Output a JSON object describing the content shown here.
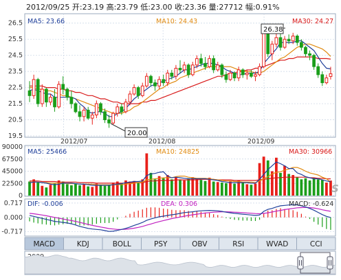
{
  "header": {
    "text": "2012/09/25 开:23.19 高:23.79 低:23.00 收:23.36 量:27712 幅:0.91%"
  },
  "price_panel": {
    "ma_labels": [
      "MA5: 23.66",
      "MA10: 24.43",
      "MA30: 24.27"
    ],
    "y_ticks": [
      "26.5",
      "25.5",
      "24.5",
      "23.5",
      "22.5",
      "21.5",
      "20.5",
      "19.5"
    ],
    "date_labels": [
      "2012/07",
      "2012/08",
      "2012/09"
    ],
    "callout_high": "26.38",
    "callout_low": "20.00"
  },
  "volume_panel": {
    "ma_labels": [
      "MA5: 25466",
      "MA10: 24825",
      "MA30: 30966"
    ],
    "y_ticks": [
      "90000",
      "67500",
      "45000",
      "22500",
      "0"
    ]
  },
  "macd_panel": {
    "labels": [
      "DIF: -0.006",
      "DEA: 0.306",
      "MACD: -0.624"
    ],
    "y_ticks": [
      "0.717",
      "0.000",
      "-0.717"
    ]
  },
  "tabs": [
    "MACD",
    "KDJ",
    "BOLL",
    "PSY",
    "OBV",
    "RSI",
    "WVAD",
    "CCI"
  ],
  "active_tab": "MACD",
  "overview": {
    "year_label": "2009"
  },
  "watermark": "S",
  "colors": {
    "up": "#e8201a",
    "down": "#1a9e1a",
    "ma5": "#1f3f9a",
    "ma10": "#e08a10",
    "ma30": "#d81818",
    "dif": "#1f3f9a",
    "dea": "#c020c0",
    "grid": "#c8d4e4",
    "axis": "#9aa8bc",
    "tab_bg": "#dfe6ee",
    "tab_active": "#b8c8dc"
  },
  "chart_data": {
    "type": "candlestick",
    "x_start": "2012-06-25",
    "candles": [
      {
        "o": 22.3,
        "h": 22.9,
        "l": 21.6,
        "c": 22.0,
        "v": 26000
      },
      {
        "o": 22.0,
        "h": 23.3,
        "l": 21.8,
        "c": 23.0,
        "v": 30000
      },
      {
        "o": 23.0,
        "h": 23.1,
        "l": 21.3,
        "c": 21.5,
        "v": 24000
      },
      {
        "o": 21.5,
        "h": 22.7,
        "l": 21.3,
        "c": 22.4,
        "v": 18000
      },
      {
        "o": 22.4,
        "h": 22.5,
        "l": 21.3,
        "c": 21.6,
        "v": 15000
      },
      {
        "o": 21.6,
        "h": 22.1,
        "l": 21.4,
        "c": 21.9,
        "v": 20000
      },
      {
        "o": 21.9,
        "h": 22.4,
        "l": 21.0,
        "c": 21.3,
        "v": 22000
      },
      {
        "o": 21.3,
        "h": 22.9,
        "l": 21.2,
        "c": 22.7,
        "v": 28000
      },
      {
        "o": 22.7,
        "h": 23.2,
        "l": 22.1,
        "c": 22.4,
        "v": 26000
      },
      {
        "o": 22.4,
        "h": 22.5,
        "l": 21.7,
        "c": 21.9,
        "v": 21000
      },
      {
        "o": 21.9,
        "h": 22.3,
        "l": 21.2,
        "c": 21.5,
        "v": 19000
      },
      {
        "o": 21.5,
        "h": 21.6,
        "l": 20.9,
        "c": 21.0,
        "v": 23000
      },
      {
        "o": 21.0,
        "h": 21.4,
        "l": 20.4,
        "c": 20.7,
        "v": 19000
      },
      {
        "o": 20.7,
        "h": 21.3,
        "l": 20.4,
        "c": 21.1,
        "v": 21000
      },
      {
        "o": 21.1,
        "h": 21.3,
        "l": 20.5,
        "c": 20.6,
        "v": 17000
      },
      {
        "o": 20.6,
        "h": 21.0,
        "l": 20.2,
        "c": 20.8,
        "v": 16000
      },
      {
        "o": 20.8,
        "h": 21.7,
        "l": 20.6,
        "c": 21.5,
        "v": 22000
      },
      {
        "o": 21.5,
        "h": 21.6,
        "l": 20.8,
        "c": 21.0,
        "v": 20000
      },
      {
        "o": 21.0,
        "h": 21.2,
        "l": 20.3,
        "c": 20.5,
        "v": 18000
      },
      {
        "o": 20.5,
        "h": 20.8,
        "l": 20.0,
        "c": 20.3,
        "v": 19000
      },
      {
        "o": 20.3,
        "h": 21.0,
        "l": 20.2,
        "c": 20.9,
        "v": 24000
      },
      {
        "o": 20.9,
        "h": 21.5,
        "l": 20.7,
        "c": 21.3,
        "v": 26000
      },
      {
        "o": 21.3,
        "h": 21.5,
        "l": 20.8,
        "c": 21.0,
        "v": 22000
      },
      {
        "o": 21.0,
        "h": 21.8,
        "l": 20.9,
        "c": 21.6,
        "v": 28000
      },
      {
        "o": 21.6,
        "h": 22.3,
        "l": 21.4,
        "c": 22.1,
        "v": 26000
      },
      {
        "o": 22.1,
        "h": 22.7,
        "l": 22.0,
        "c": 22.5,
        "v": 27000
      },
      {
        "o": 22.5,
        "h": 22.6,
        "l": 21.8,
        "c": 22.0,
        "v": 25000
      },
      {
        "o": 22.0,
        "h": 22.8,
        "l": 21.9,
        "c": 22.6,
        "v": 30000
      },
      {
        "o": 22.6,
        "h": 23.4,
        "l": 22.5,
        "c": 23.2,
        "v": 78000
      },
      {
        "o": 23.2,
        "h": 23.3,
        "l": 22.6,
        "c": 22.8,
        "v": 42000
      },
      {
        "o": 22.8,
        "h": 23.0,
        "l": 22.3,
        "c": 22.6,
        "v": 30000
      },
      {
        "o": 22.6,
        "h": 23.2,
        "l": 22.4,
        "c": 23.0,
        "v": 36000
      },
      {
        "o": 23.0,
        "h": 23.3,
        "l": 22.6,
        "c": 22.8,
        "v": 32000
      },
      {
        "o": 22.8,
        "h": 23.6,
        "l": 22.6,
        "c": 23.4,
        "v": 38000
      },
      {
        "o": 23.4,
        "h": 23.6,
        "l": 23.0,
        "c": 23.2,
        "v": 30000
      },
      {
        "o": 23.2,
        "h": 23.9,
        "l": 23.0,
        "c": 23.7,
        "v": 34000
      },
      {
        "o": 23.7,
        "h": 24.2,
        "l": 23.4,
        "c": 23.6,
        "v": 30000
      },
      {
        "o": 23.6,
        "h": 24.1,
        "l": 23.4,
        "c": 23.9,
        "v": 28000
      },
      {
        "o": 23.9,
        "h": 24.0,
        "l": 23.1,
        "c": 23.3,
        "v": 32000
      },
      {
        "o": 23.3,
        "h": 24.1,
        "l": 23.2,
        "c": 23.9,
        "v": 34000
      },
      {
        "o": 23.9,
        "h": 24.5,
        "l": 23.7,
        "c": 24.3,
        "v": 31000
      },
      {
        "o": 24.3,
        "h": 24.6,
        "l": 23.8,
        "c": 24.0,
        "v": 29000
      },
      {
        "o": 24.0,
        "h": 24.4,
        "l": 23.6,
        "c": 23.8,
        "v": 27000
      },
      {
        "o": 23.8,
        "h": 24.5,
        "l": 23.7,
        "c": 24.3,
        "v": 33000
      },
      {
        "o": 24.3,
        "h": 24.5,
        "l": 23.4,
        "c": 23.6,
        "v": 26000
      },
      {
        "o": 23.6,
        "h": 24.1,
        "l": 23.5,
        "c": 23.9,
        "v": 25000
      },
      {
        "o": 23.9,
        "h": 24.0,
        "l": 23.1,
        "c": 23.3,
        "v": 24000
      },
      {
        "o": 23.3,
        "h": 23.5,
        "l": 22.8,
        "c": 23.0,
        "v": 23000
      },
      {
        "o": 23.0,
        "h": 23.6,
        "l": 22.9,
        "c": 23.4,
        "v": 26000
      },
      {
        "o": 23.4,
        "h": 23.5,
        "l": 22.9,
        "c": 23.1,
        "v": 22000
      },
      {
        "o": 23.1,
        "h": 23.8,
        "l": 22.9,
        "c": 23.6,
        "v": 28000
      },
      {
        "o": 23.6,
        "h": 23.7,
        "l": 23.1,
        "c": 23.3,
        "v": 24000
      },
      {
        "o": 23.3,
        "h": 23.6,
        "l": 23.0,
        "c": 23.4,
        "v": 21000
      },
      {
        "o": 23.4,
        "h": 23.6,
        "l": 23.1,
        "c": 23.2,
        "v": 20000
      },
      {
        "o": 23.2,
        "h": 23.5,
        "l": 22.9,
        "c": 23.3,
        "v": 22000
      },
      {
        "o": 23.3,
        "h": 24.0,
        "l": 23.2,
        "c": 23.8,
        "v": 60000
      },
      {
        "o": 23.8,
        "h": 26.3,
        "l": 23.7,
        "c": 26.0,
        "v": 72000
      },
      {
        "o": 26.0,
        "h": 26.2,
        "l": 24.4,
        "c": 24.6,
        "v": 65000
      },
      {
        "o": 24.6,
        "h": 25.4,
        "l": 24.2,
        "c": 25.2,
        "v": 45000
      },
      {
        "o": 25.2,
        "h": 26.38,
        "l": 25.0,
        "c": 25.6,
        "v": 70000
      },
      {
        "o": 25.6,
        "h": 25.9,
        "l": 24.8,
        "c": 25.0,
        "v": 42000
      },
      {
        "o": 25.0,
        "h": 25.7,
        "l": 24.9,
        "c": 25.5,
        "v": 55000
      },
      {
        "o": 25.5,
        "h": 25.8,
        "l": 25.2,
        "c": 25.4,
        "v": 40000
      },
      {
        "o": 25.4,
        "h": 25.9,
        "l": 25.2,
        "c": 25.7,
        "v": 38000
      },
      {
        "o": 25.7,
        "h": 25.8,
        "l": 25.1,
        "c": 25.3,
        "v": 34000
      },
      {
        "o": 25.3,
        "h": 25.5,
        "l": 24.8,
        "c": 25.0,
        "v": 30000
      },
      {
        "o": 25.0,
        "h": 25.1,
        "l": 24.4,
        "c": 24.6,
        "v": 32000
      },
      {
        "o": 24.6,
        "h": 24.8,
        "l": 24.2,
        "c": 24.5,
        "v": 28000
      },
      {
        "o": 24.5,
        "h": 24.6,
        "l": 23.6,
        "c": 23.8,
        "v": 33000
      },
      {
        "o": 23.8,
        "h": 24.0,
        "l": 23.1,
        "c": 23.3,
        "v": 30000
      },
      {
        "o": 23.3,
        "h": 23.5,
        "l": 22.6,
        "c": 22.8,
        "v": 29000
      },
      {
        "o": 22.8,
        "h": 23.3,
        "l": 22.7,
        "c": 23.1,
        "v": 24000
      },
      {
        "o": 23.19,
        "h": 23.79,
        "l": 23.0,
        "c": 23.36,
        "v": 27712
      }
    ],
    "ma5": [
      22.3,
      22.4,
      22.3,
      22.2,
      22.1,
      22.1,
      21.9,
      21.9,
      21.9,
      21.9,
      21.9,
      21.8,
      21.5,
      21.3,
      21.0,
      20.9,
      21.0,
      21.0,
      20.9,
      20.7,
      20.7,
      20.9,
      21.0,
      21.2,
      21.5,
      21.8,
      22.0,
      22.2,
      22.4,
      22.6,
      22.7,
      22.8,
      22.9,
      23.0,
      23.1,
      23.2,
      23.4,
      23.6,
      23.6,
      23.7,
      23.8,
      23.9,
      24.0,
      24.0,
      24.0,
      23.9,
      23.8,
      23.6,
      23.5,
      23.4,
      23.3,
      23.3,
      23.4,
      23.4,
      23.4,
      23.5,
      24.0,
      24.3,
      24.6,
      24.9,
      25.3,
      25.3,
      25.3,
      25.3,
      25.4,
      25.4,
      25.2,
      25.0,
      24.8,
      24.4,
      24.0,
      23.7,
      23.66
    ],
    "ma10": [
      22.5,
      22.5,
      22.4,
      22.4,
      22.3,
      22.3,
      22.2,
      22.1,
      22.0,
      22.0,
      21.9,
      21.8,
      21.7,
      21.6,
      21.5,
      21.4,
      21.3,
      21.2,
      21.1,
      21.0,
      20.9,
      20.9,
      20.9,
      21.0,
      21.1,
      21.3,
      21.4,
      21.6,
      21.8,
      22.0,
      22.2,
      22.4,
      22.5,
      22.7,
      22.8,
      22.9,
      23.1,
      23.2,
      23.3,
      23.4,
      23.5,
      23.6,
      23.7,
      23.8,
      23.8,
      23.8,
      23.8,
      23.8,
      23.8,
      23.7,
      23.6,
      23.5,
      23.5,
      23.5,
      23.4,
      23.4,
      23.5,
      23.7,
      23.9,
      24.1,
      24.3,
      24.4,
      24.6,
      24.8,
      25.0,
      25.1,
      25.2,
      25.2,
      25.1,
      25.0,
      24.9,
      24.7,
      24.43
    ],
    "ma30": [
      22.6,
      22.6,
      22.6,
      22.6,
      22.5,
      22.5,
      22.5,
      22.4,
      22.4,
      22.3,
      22.3,
      22.2,
      22.2,
      22.1,
      22.0,
      22.0,
      21.9,
      21.8,
      21.8,
      21.7,
      21.6,
      21.6,
      21.5,
      21.5,
      21.5,
      21.5,
      21.5,
      21.6,
      21.6,
      21.7,
      21.7,
      21.8,
      21.9,
      22.0,
      22.1,
      22.2,
      22.3,
      22.4,
      22.5,
      22.6,
      22.7,
      22.8,
      22.9,
      23.0,
      23.1,
      23.2,
      23.2,
      23.3,
      23.4,
      23.4,
      23.5,
      23.5,
      23.6,
      23.6,
      23.7,
      23.7,
      23.8,
      23.9,
      24.0,
      24.1,
      24.2,
      24.2,
      24.3,
      24.3,
      24.4,
      24.4,
      24.4,
      24.4,
      24.4,
      24.3,
      24.3,
      24.3,
      24.27
    ],
    "vol_ma5": [
      24000,
      25000,
      25000,
      24000,
      23000,
      21000,
      20000,
      21000,
      23000,
      23000,
      23000,
      22000,
      21000,
      21000,
      20000,
      19000,
      19000,
      19000,
      19000,
      19000,
      20000,
      21000,
      22000,
      24000,
      25000,
      26000,
      26000,
      27000,
      37000,
      40000,
      41000,
      43000,
      44000,
      36000,
      33000,
      34000,
      33000,
      32000,
      31000,
      31000,
      31000,
      31000,
      31000,
      30000,
      29000,
      28000,
      26000,
      25000,
      24000,
      24000,
      24000,
      24000,
      24000,
      23000,
      23000,
      30000,
      39000,
      48000,
      55000,
      62000,
      59000,
      55000,
      50000,
      50000,
      42000,
      39000,
      35000,
      33000,
      31000,
      31000,
      29000,
      27000,
      25466
    ],
    "vol_ma10": [
      25000,
      25000,
      25000,
      24000,
      24000,
      23000,
      23000,
      23000,
      23000,
      22000,
      22000,
      22000,
      21000,
      21000,
      21000,
      21000,
      20000,
      20000,
      20000,
      20000,
      20000,
      20000,
      20000,
      21000,
      22000,
      23000,
      24000,
      25000,
      29000,
      30000,
      31000,
      32000,
      33000,
      33000,
      33000,
      35000,
      36000,
      36000,
      34000,
      33000,
      32000,
      32000,
      32000,
      31000,
      30000,
      29000,
      28000,
      27000,
      27000,
      26000,
      26000,
      25000,
      25000,
      25000,
      24000,
      27000,
      31000,
      35000,
      40000,
      43000,
      44000,
      47000,
      49000,
      52000,
      52000,
      49000,
      45000,
      42000,
      40000,
      38000,
      34000,
      31000,
      24825
    ],
    "vol_ma30": [
      27000,
      27000,
      27000,
      26000,
      26000,
      26000,
      26000,
      25000,
      25000,
      25000,
      25000,
      25000,
      24000,
      24000,
      24000,
      24000,
      23000,
      23000,
      23000,
      23000,
      23000,
      23000,
      23000,
      23000,
      24000,
      24000,
      24000,
      24000,
      26000,
      27000,
      27000,
      28000,
      28000,
      28000,
      28000,
      29000,
      29000,
      29000,
      29000,
      29000,
      29000,
      30000,
      30000,
      30000,
      30000,
      29000,
      29000,
      29000,
      29000,
      28000,
      28000,
      28000,
      28000,
      28000,
      28000,
      29000,
      30000,
      31000,
      32000,
      33000,
      33000,
      34000,
      34000,
      34000,
      34000,
      34000,
      34000,
      33000,
      33000,
      32000,
      32000,
      31000,
      30966
    ],
    "dif": [
      0.1,
      0.05,
      0.0,
      -0.05,
      -0.1,
      -0.15,
      -0.2,
      -0.22,
      -0.25,
      -0.28,
      -0.32,
      -0.38,
      -0.45,
      -0.5,
      -0.55,
      -0.58,
      -0.6,
      -0.62,
      -0.66,
      -0.7,
      -0.69,
      -0.65,
      -0.6,
      -0.55,
      -0.48,
      -0.4,
      -0.33,
      -0.25,
      -0.15,
      -0.08,
      -0.02,
      0.03,
      0.06,
      0.1,
      0.13,
      0.16,
      0.2,
      0.24,
      0.26,
      0.28,
      0.31,
      0.33,
      0.34,
      0.35,
      0.34,
      0.33,
      0.3,
      0.26,
      0.23,
      0.2,
      0.18,
      0.16,
      0.14,
      0.12,
      0.1,
      0.12,
      0.3,
      0.4,
      0.45,
      0.52,
      0.58,
      0.6,
      0.62,
      0.63,
      0.62,
      0.58,
      0.52,
      0.45,
      0.36,
      0.25,
      0.14,
      0.05,
      -0.006
    ],
    "dea": [
      0.2,
      0.18,
      0.15,
      0.12,
      0.08,
      0.04,
      0.0,
      -0.04,
      -0.08,
      -0.12,
      -0.16,
      -0.2,
      -0.25,
      -0.3,
      -0.35,
      -0.4,
      -0.44,
      -0.48,
      -0.52,
      -0.56,
      -0.58,
      -0.6,
      -0.6,
      -0.59,
      -0.57,
      -0.54,
      -0.5,
      -0.45,
      -0.39,
      -0.33,
      -0.27,
      -0.21,
      -0.16,
      -0.11,
      -0.06,
      -0.02,
      0.02,
      0.06,
      0.1,
      0.13,
      0.16,
      0.19,
      0.22,
      0.24,
      0.26,
      0.27,
      0.28,
      0.28,
      0.27,
      0.26,
      0.25,
      0.24,
      0.22,
      0.21,
      0.19,
      0.18,
      0.2,
      0.23,
      0.27,
      0.31,
      0.35,
      0.39,
      0.42,
      0.45,
      0.48,
      0.49,
      0.5,
      0.49,
      0.47,
      0.43,
      0.38,
      0.34,
      0.306
    ],
    "price_range": [
      19.5,
      27.0
    ],
    "volume_range": [
      0,
      90000
    ],
    "macd_range": [
      -0.9,
      0.85
    ]
  }
}
